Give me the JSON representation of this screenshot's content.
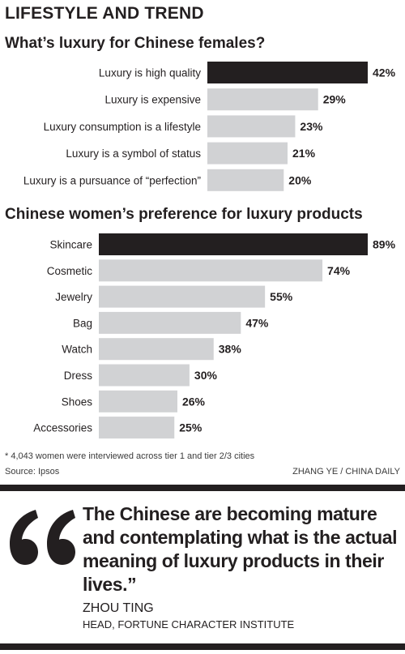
{
  "section_label": "LIFESTYLE AND TREND",
  "chart_data": [
    {
      "type": "bar",
      "orientation": "horizontal",
      "title": "What’s luxury for Chinese females?",
      "categories": [
        "Luxury is high quality",
        "Luxury is expensive",
        "Luxury consumption is a lifestyle",
        "Luxury is a symbol of status",
        "Luxury is a pursuance of “perfection”"
      ],
      "values": [
        42,
        29,
        23,
        21,
        20
      ],
      "value_labels": [
        "42%",
        "29%",
        "23%",
        "21%",
        "20%"
      ],
      "highlight_index": 0,
      "xlim": [
        0,
        42
      ],
      "grid": false,
      "colors": {
        "highlight": "#231f20",
        "bar": "#d1d2d4"
      }
    },
    {
      "type": "bar",
      "orientation": "horizontal",
      "title": "Chinese women’s preference for luxury products",
      "categories": [
        "Skincare",
        "Cosmetic",
        "Jewelry",
        "Bag",
        "Watch",
        "Dress",
        "Shoes",
        "Accessories"
      ],
      "values": [
        89,
        74,
        55,
        47,
        38,
        30,
        26,
        25
      ],
      "value_labels": [
        "89%",
        "74%",
        "55%",
        "47%",
        "38%",
        "30%",
        "26%",
        "25%"
      ],
      "highlight_index": 0,
      "xlim": [
        0,
        89
      ],
      "grid": false,
      "colors": {
        "highlight": "#231f20",
        "bar": "#d1d2d4"
      }
    }
  ],
  "footnote": "* 4,043 women were interviewed across tier 1 and tier 2/3 cities",
  "source": "Source: Ipsos",
  "credit": "ZHANG YE / CHINA DAILY",
  "quote": {
    "text": "The Chinese are becoming mature and contemplating what is the actual meaning of luxury products in their lives.”",
    "name": "ZHOU TING",
    "role": "HEAD, FORTUNE CHARACTER INSTITUTE",
    "icon": "quotation-mark-icon"
  }
}
